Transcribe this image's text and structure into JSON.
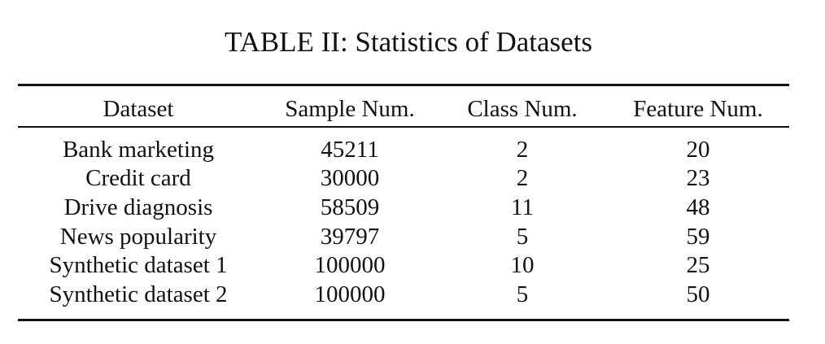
{
  "table": {
    "caption": "TABLE II: Statistics of Datasets",
    "headers": [
      "Dataset",
      "Sample Num.",
      "Class Num.",
      "Feature Num."
    ],
    "rows": [
      [
        "Bank marketing",
        "45211",
        "2",
        "20"
      ],
      [
        "Credit card",
        "30000",
        "2",
        "23"
      ],
      [
        "Drive diagnosis",
        "58509",
        "11",
        "48"
      ],
      [
        "News popularity",
        "39797",
        "5",
        "59"
      ],
      [
        "Synthetic dataset 1",
        "100000",
        "10",
        "25"
      ],
      [
        "Synthetic dataset 2",
        "100000",
        "5",
        "50"
      ]
    ]
  }
}
